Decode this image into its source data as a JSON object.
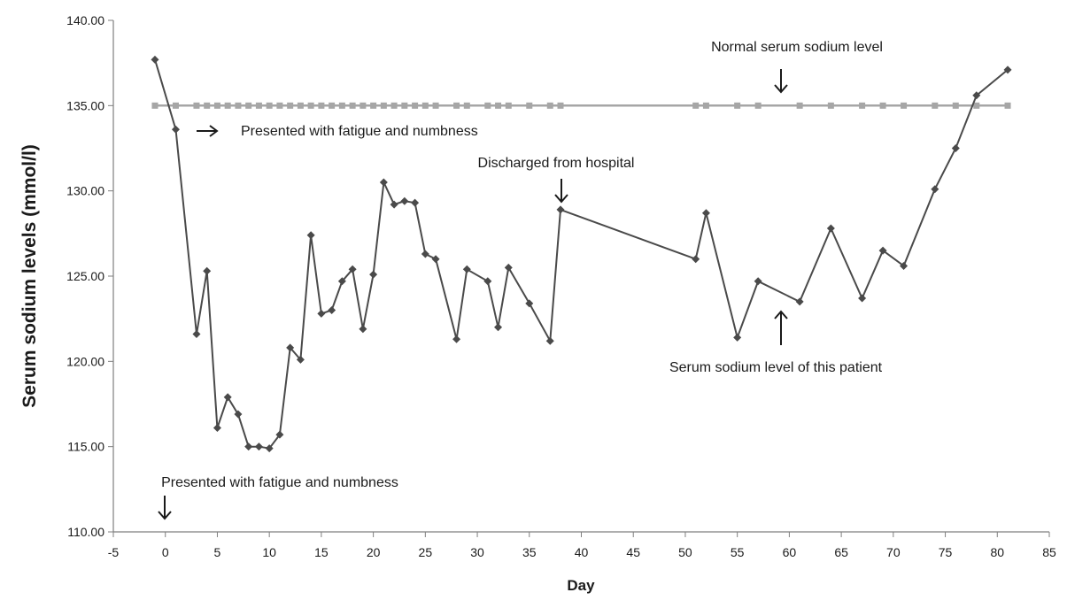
{
  "chart_data": {
    "type": "line",
    "title": "",
    "xlabel": "Day",
    "ylabel": "Serum sodium levels (mmol/l)",
    "xlim": [
      -5,
      85
    ],
    "ylim": [
      110,
      140
    ],
    "x_ticks": [
      "-5",
      "0",
      "5",
      "10",
      "15",
      "20",
      "25",
      "30",
      "35",
      "40",
      "45",
      "50",
      "55",
      "60",
      "65",
      "70",
      "75",
      "80",
      "85"
    ],
    "y_ticks": [
      "110.00",
      "115.00",
      "120.00",
      "125.00",
      "130.00",
      "135.00",
      "140.00"
    ],
    "grid": false,
    "series": [
      {
        "name": "Serum sodium level of this patient",
        "color": "#4a4a4a",
        "marker": "diamond",
        "x": [
          -1,
          1,
          3,
          4,
          5,
          6,
          7,
          8,
          9,
          10,
          11,
          12,
          13,
          14,
          15,
          16,
          17,
          18,
          19,
          20,
          21,
          22,
          23,
          24,
          25,
          26,
          28,
          29,
          31,
          32,
          33,
          35,
          37,
          38,
          51,
          52,
          55,
          57,
          61,
          64,
          67,
          69,
          71,
          74,
          76,
          78,
          81
        ],
        "y": [
          137.7,
          133.6,
          121.6,
          125.3,
          116.1,
          117.9,
          116.9,
          115.0,
          115.0,
          114.9,
          115.7,
          120.8,
          120.1,
          127.4,
          122.8,
          123.0,
          124.7,
          125.4,
          121.9,
          125.1,
          130.5,
          129.2,
          129.4,
          129.3,
          126.3,
          126.0,
          121.3,
          125.4,
          124.7,
          122.0,
          125.5,
          123.4,
          121.2,
          128.9,
          126.0,
          128.7,
          121.4,
          124.7,
          123.5,
          127.8,
          123.7,
          126.5,
          125.6,
          130.1,
          132.5,
          135.6,
          137.1
        ]
      },
      {
        "name": "Normal serum sodium level",
        "color": "#a6a6a6",
        "marker": "square",
        "x": [
          -1,
          1,
          3,
          4,
          5,
          6,
          7,
          8,
          9,
          10,
          11,
          12,
          13,
          14,
          15,
          16,
          17,
          18,
          19,
          20,
          21,
          22,
          23,
          24,
          25,
          26,
          28,
          29,
          31,
          32,
          33,
          35,
          37,
          38,
          51,
          52,
          55,
          57,
          61,
          64,
          67,
          69,
          71,
          74,
          76,
          78,
          81
        ],
        "y": [
          135,
          135,
          135,
          135,
          135,
          135,
          135,
          135,
          135,
          135,
          135,
          135,
          135,
          135,
          135,
          135,
          135,
          135,
          135,
          135,
          135,
          135,
          135,
          135,
          135,
          135,
          135,
          135,
          135,
          135,
          135,
          135,
          135,
          135,
          135,
          135,
          135,
          135,
          135,
          135,
          135,
          135,
          135,
          135,
          135,
          135,
          135
        ]
      }
    ],
    "annotations": [
      "Normal serum sodium level",
      "Presented with fatigue and numbness",
      "Discharged from hospital",
      "Serum sodium level of this patient",
      "Presented with fatigue and numbness"
    ]
  }
}
